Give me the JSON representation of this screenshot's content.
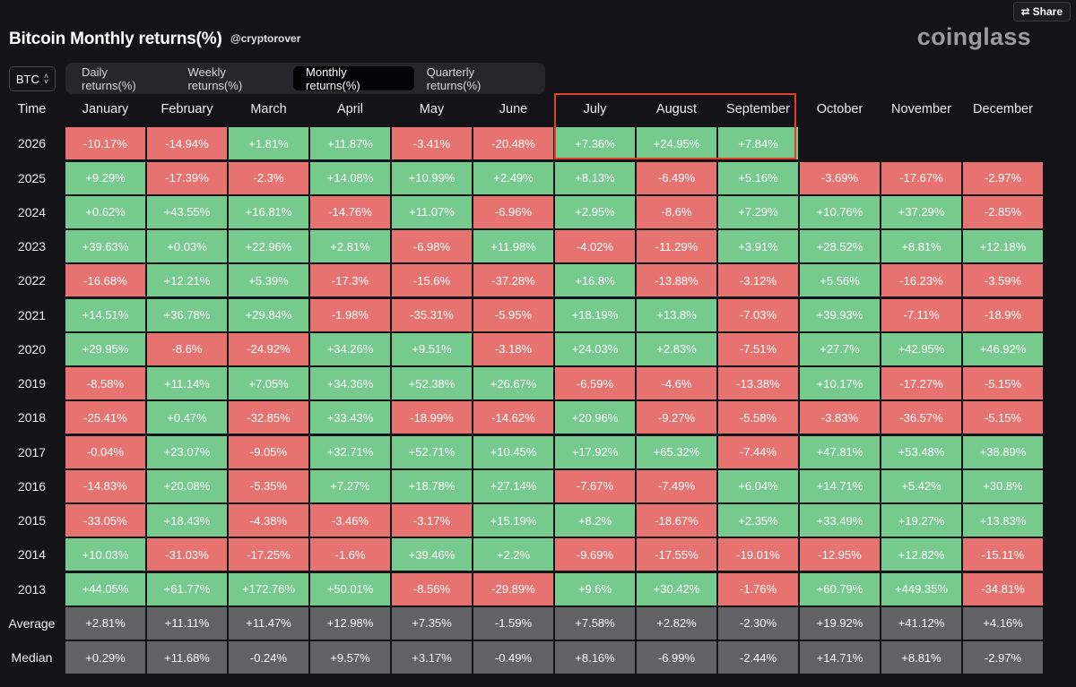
{
  "share_label": "Share",
  "title": "Bitcoin Monthly returns(%)",
  "handle": "@cryptorover",
  "brand": "coinglass",
  "coin": "BTC",
  "tabs": [
    {
      "label": "Daily returns(%)",
      "active": false
    },
    {
      "label": "Weekly returns(%)",
      "active": false
    },
    {
      "label": "Monthly returns(%)",
      "active": true
    },
    {
      "label": "Quarterly returns(%)",
      "active": false
    }
  ],
  "table": {
    "corner": "Time",
    "months": [
      "January",
      "February",
      "March",
      "April",
      "May",
      "June",
      "July",
      "August",
      "September",
      "October",
      "November",
      "December"
    ],
    "rows": [
      {
        "year": "2026",
        "values": [
          "-10.17%",
          "-14.94%",
          "+1.81%",
          "+11.87%",
          "-3.41%",
          "-20.48%",
          "+7.36%",
          "+24.95%",
          "+7.84%",
          "",
          "",
          ""
        ]
      },
      {
        "year": "2025",
        "values": [
          "+9.29%",
          "-17.39%",
          "-2.3%",
          "+14.08%",
          "+10.99%",
          "+2.49%",
          "+8.13%",
          "-6.49%",
          "+5.16%",
          "-3.69%",
          "-17.67%",
          "-2.97%"
        ]
      },
      {
        "year": "2024",
        "values": [
          "+0.62%",
          "+43.55%",
          "+16.81%",
          "-14.76%",
          "+11.07%",
          "-6.96%",
          "+2.95%",
          "-8.6%",
          "+7.29%",
          "+10.76%",
          "+37.29%",
          "-2.85%"
        ]
      },
      {
        "year": "2023",
        "values": [
          "+39.63%",
          "+0.03%",
          "+22.96%",
          "+2.81%",
          "-6.98%",
          "+11.98%",
          "-4.02%",
          "-11.29%",
          "+3.91%",
          "+28.52%",
          "+8.81%",
          "+12.18%"
        ]
      },
      {
        "year": "2022",
        "values": [
          "-16.68%",
          "+12.21%",
          "+5.39%",
          "-17.3%",
          "-15.6%",
          "-37.28%",
          "+16.8%",
          "-13.88%",
          "-3.12%",
          "+5.56%",
          "-16.23%",
          "-3.59%"
        ]
      },
      {
        "year": "2021",
        "values": [
          "+14.51%",
          "+36.78%",
          "+29.84%",
          "-1.98%",
          "-35.31%",
          "-5.95%",
          "+18.19%",
          "+13.8%",
          "-7.03%",
          "+39.93%",
          "-7.11%",
          "-18.9%"
        ]
      },
      {
        "year": "2020",
        "values": [
          "+29.95%",
          "-8.6%",
          "-24.92%",
          "+34.26%",
          "+9.51%",
          "-3.18%",
          "+24.03%",
          "+2.83%",
          "-7.51%",
          "+27.7%",
          "+42.95%",
          "+46.92%"
        ]
      },
      {
        "year": "2019",
        "values": [
          "-8.58%",
          "+11.14%",
          "+7.05%",
          "+34.36%",
          "+52.38%",
          "+26.67%",
          "-6.59%",
          "-4.6%",
          "-13.38%",
          "+10.17%",
          "-17.27%",
          "-5.15%"
        ]
      },
      {
        "year": "2018",
        "values": [
          "-25.41%",
          "+0.47%",
          "-32.85%",
          "+33.43%",
          "-18.99%",
          "-14.62%",
          "+20.96%",
          "-9.27%",
          "-5.58%",
          "-3.83%",
          "-36.57%",
          "-5.15%"
        ]
      },
      {
        "year": "2017",
        "values": [
          "-0.04%",
          "+23.07%",
          "-9.05%",
          "+32.71%",
          "+52.71%",
          "+10.45%",
          "+17.92%",
          "+65.32%",
          "-7.44%",
          "+47.81%",
          "+53.48%",
          "+38.89%"
        ]
      },
      {
        "year": "2016",
        "values": [
          "-14.83%",
          "+20.08%",
          "-5.35%",
          "+7.27%",
          "+18.78%",
          "+27.14%",
          "-7.67%",
          "-7.49%",
          "+6.04%",
          "+14.71%",
          "+5.42%",
          "+30.8%"
        ]
      },
      {
        "year": "2015",
        "values": [
          "-33.05%",
          "+18.43%",
          "-4.38%",
          "-3.46%",
          "-3.17%",
          "+15.19%",
          "+8.2%",
          "-18.67%",
          "+2.35%",
          "+33.49%",
          "+19.27%",
          "+13.83%"
        ]
      },
      {
        "year": "2014",
        "values": [
          "+10.03%",
          "-31.03%",
          "-17.25%",
          "-1.6%",
          "+39.46%",
          "+2.2%",
          "-9.69%",
          "-17.55%",
          "-19.01%",
          "-12.95%",
          "+12.82%",
          "-15.11%"
        ]
      },
      {
        "year": "2013",
        "values": [
          "+44.05%",
          "+61.77%",
          "+172.76%",
          "+50.01%",
          "-8.56%",
          "-29.89%",
          "+9.6%",
          "+30.42%",
          "-1.76%",
          "+60.79%",
          "+449.35%",
          "-34.81%"
        ]
      }
    ],
    "summary": [
      {
        "label": "Average",
        "values": [
          "+2.81%",
          "+11.11%",
          "+11.47%",
          "+12.98%",
          "+7.35%",
          "-1.59%",
          "+7.58%",
          "+2.82%",
          "-2.30%",
          "+19.92%",
          "+41.12%",
          "+4.16%"
        ]
      },
      {
        "label": "Median",
        "values": [
          "+0.29%",
          "+11.68%",
          "-0.24%",
          "+9.57%",
          "+3.17%",
          "-0.49%",
          "+8.16%",
          "-6.99%",
          "-2.44%",
          "+14.71%",
          "+8.81%",
          "-2.97%"
        ]
      }
    ]
  },
  "colors": {
    "positive": "#76ca8d",
    "negative": "#e77371",
    "summary": "#626265",
    "highlight": "#e0402a"
  }
}
